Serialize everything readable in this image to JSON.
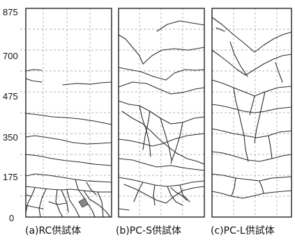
{
  "figure": {
    "y_axis": {
      "ticks": [
        "875",
        "700",
        "475",
        "350",
        "175",
        "0"
      ]
    },
    "panels": [
      {
        "id": "rc",
        "caption": "(a)RC供試体"
      },
      {
        "id": "pcs",
        "caption": "(b)PC-S供試体"
      },
      {
        "id": "pcl",
        "caption": "(c)PC-L供試体"
      }
    ]
  }
}
